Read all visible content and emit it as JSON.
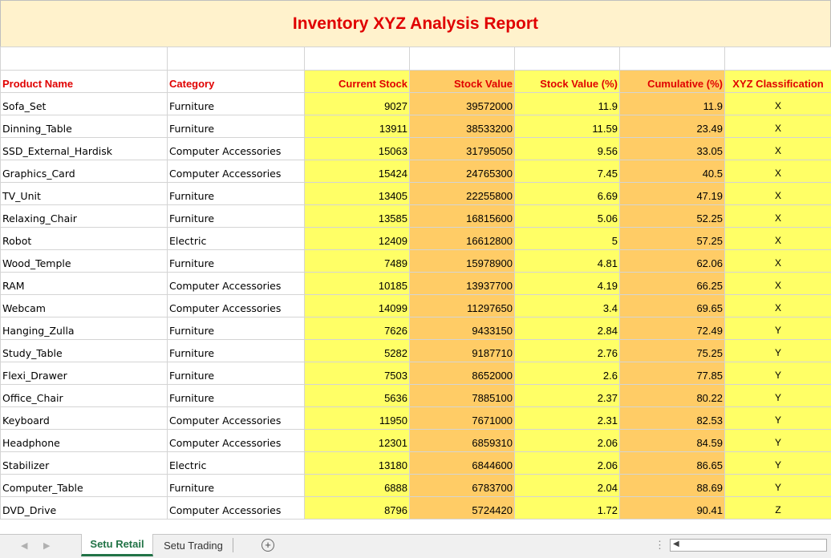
{
  "title": "Inventory XYZ Analysis Report",
  "headers": [
    "Product Name",
    "Category",
    "Current Stock",
    "Stock Value",
    "Stock Value (%)",
    "Cumulative (%)",
    "XYZ Classification"
  ],
  "rows": [
    [
      "Sofa_Set",
      "Furniture",
      "9027",
      "39572000",
      "11.9",
      "11.9",
      "X"
    ],
    [
      "Dinning_Table",
      "Furniture",
      "13911",
      "38533200",
      "11.59",
      "23.49",
      "X"
    ],
    [
      "SSD_External_Hardisk",
      "Computer Accessories",
      "15063",
      "31795050",
      "9.56",
      "33.05",
      "X"
    ],
    [
      "Graphics_Card",
      "Computer Accessories",
      "15424",
      "24765300",
      "7.45",
      "40.5",
      "X"
    ],
    [
      "TV_Unit",
      "Furniture",
      "13405",
      "22255800",
      "6.69",
      "47.19",
      "X"
    ],
    [
      "Relaxing_Chair",
      "Furniture",
      "13585",
      "16815600",
      "5.06",
      "52.25",
      "X"
    ],
    [
      "Robot",
      "Electric",
      "12409",
      "16612800",
      "5",
      "57.25",
      "X"
    ],
    [
      "Wood_Temple",
      "Furniture",
      "7489",
      "15978900",
      "4.81",
      "62.06",
      "X"
    ],
    [
      "RAM",
      "Computer Accessories",
      "10185",
      "13937700",
      "4.19",
      "66.25",
      "X"
    ],
    [
      "Webcam",
      "Computer Accessories",
      "14099",
      "11297650",
      "3.4",
      "69.65",
      "X"
    ],
    [
      "Hanging_Zulla",
      "Furniture",
      "7626",
      "9433150",
      "2.84",
      "72.49",
      "Y"
    ],
    [
      "Study_Table",
      "Furniture",
      "5282",
      "9187710",
      "2.76",
      "75.25",
      "Y"
    ],
    [
      "Flexi_Drawer",
      "Furniture",
      "7503",
      "8652000",
      "2.6",
      "77.85",
      "Y"
    ],
    [
      "Office_Chair",
      "Furniture",
      "5636",
      "7885100",
      "2.37",
      "80.22",
      "Y"
    ],
    [
      "Keyboard",
      "Computer Accessories",
      "11950",
      "7671000",
      "2.31",
      "82.53",
      "Y"
    ],
    [
      "Headphone",
      "Computer Accessories",
      "12301",
      "6859310",
      "2.06",
      "84.59",
      "Y"
    ],
    [
      "Stabilizer",
      "Electric",
      "13180",
      "6844600",
      "2.06",
      "86.65",
      "Y"
    ],
    [
      "Computer_Table",
      "Furniture",
      "6888",
      "6783700",
      "2.04",
      "88.69",
      "Y"
    ],
    [
      "DVD_Drive",
      "Computer Accessories",
      "8796",
      "5724420",
      "1.72",
      "90.41",
      "Z"
    ]
  ],
  "tabs": {
    "active": "Setu Retail",
    "inactive": "Setu Trading"
  },
  "icons": {
    "add_sheet": "plus-circle-icon",
    "nav_prev": "caret-left-icon",
    "nav_next": "caret-right-icon"
  },
  "colors": {
    "title_bg": "#fff2cc",
    "header_text": "#e00000",
    "yellow": "#ffff66",
    "orange": "#ffcc66",
    "tab_accent": "#217346"
  }
}
